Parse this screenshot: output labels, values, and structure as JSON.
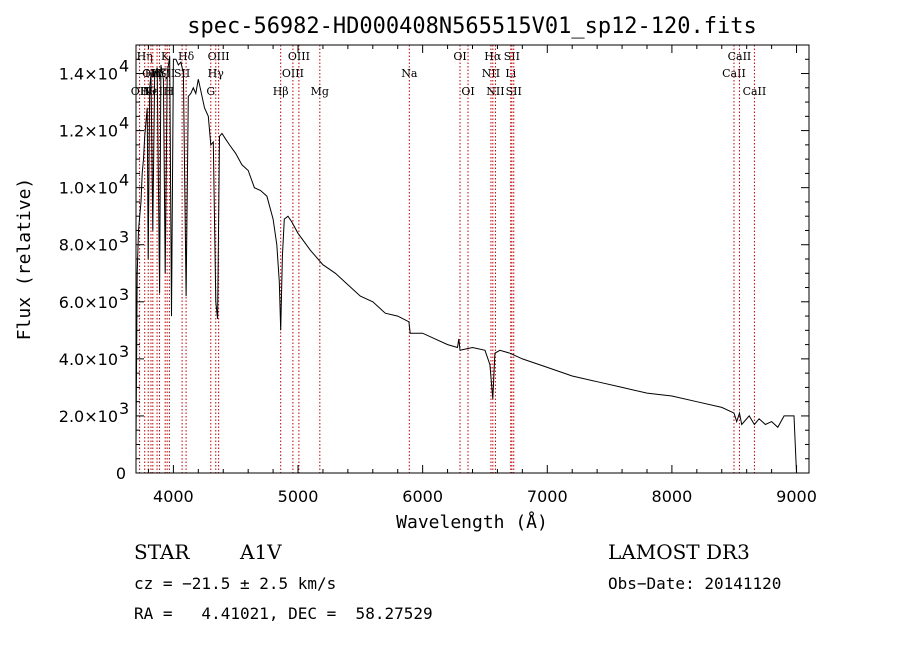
{
  "chart_data": {
    "type": "line",
    "title": "spec-56982-HD000408N565515V01_sp12-120.fits",
    "xlabel": "Wavelength (Å)",
    "ylabel": "Flux (relative)",
    "xlim": [
      3700,
      9100
    ],
    "ylim": [
      0,
      15000
    ],
    "x_ticks": [
      {
        "value": 4000,
        "label": "4000"
      },
      {
        "value": 5000,
        "label": "5000"
      },
      {
        "value": 6000,
        "label": "6000"
      },
      {
        "value": 7000,
        "label": "7000"
      },
      {
        "value": 8000,
        "label": "8000"
      },
      {
        "value": 9000,
        "label": "9000"
      }
    ],
    "y_ticks": [
      {
        "value": 0,
        "mant": "0",
        "exp": ""
      },
      {
        "value": 2000,
        "mant": "2.0×10",
        "exp": "3"
      },
      {
        "value": 4000,
        "mant": "4.0×10",
        "exp": "3"
      },
      {
        "value": 6000,
        "mant": "6.0×10",
        "exp": "3"
      },
      {
        "value": 8000,
        "mant": "8.0×10",
        "exp": "3"
      },
      {
        "value": 10000,
        "mant": "1.0×10",
        "exp": "4"
      },
      {
        "value": 12000,
        "mant": "1.2×10",
        "exp": "4"
      },
      {
        "value": 14000,
        "mant": "1.4×10",
        "exp": "4"
      }
    ],
    "series": [
      {
        "name": "flux",
        "x": [
          3700,
          3710,
          3720,
          3730,
          3740,
          3750,
          3760,
          3770,
          3780,
          3790,
          3798,
          3810,
          3820,
          3835,
          3850,
          3870,
          3889,
          3900,
          3920,
          3934,
          3950,
          3970,
          3985,
          4000,
          4020,
          4040,
          4060,
          4080,
          4102,
          4120,
          4140,
          4160,
          4180,
          4200,
          4220,
          4250,
          4280,
          4300,
          4320,
          4340,
          4355,
          4370,
          4390,
          4420,
          4450,
          4500,
          4550,
          4600,
          4650,
          4700,
          4750,
          4800,
          4830,
          4850,
          4861,
          4875,
          4890,
          4920,
          4950,
          5000,
          5100,
          5200,
          5300,
          5400,
          5500,
          5600,
          5700,
          5800,
          5890,
          5900,
          6000,
          6100,
          6200,
          6280,
          6290,
          6300,
          6400,
          6500,
          6540,
          6563,
          6580,
          6620,
          6700,
          6800,
          7000,
          7200,
          7400,
          7600,
          7800,
          8000,
          8200,
          8400,
          8498,
          8520,
          8542,
          8560,
          8620,
          8662,
          8700,
          8750,
          8800,
          8850,
          8900,
          8980,
          9000
        ],
        "y": [
          1000,
          7000,
          8500,
          9000,
          9500,
          10500,
          11000,
          11800,
          12300,
          12800,
          7500,
          13500,
          14000,
          8500,
          14000,
          14200,
          6300,
          14300,
          13800,
          7000,
          14000,
          14600,
          5500,
          14500,
          14500,
          14300,
          14400,
          14000,
          6200,
          13200,
          13300,
          13500,
          13300,
          13800,
          13400,
          12800,
          12500,
          11500,
          11600,
          6000,
          5400,
          11800,
          11900,
          11700,
          11500,
          11200,
          10800,
          10600,
          10000,
          9900,
          9700,
          8900,
          8000,
          6700,
          5000,
          7600,
          8900,
          9000,
          8800,
          8400,
          7800,
          7300,
          7000,
          6600,
          6200,
          6000,
          5600,
          5500,
          5300,
          4900,
          4900,
          4700,
          4500,
          4400,
          4700,
          4300,
          4400,
          4300,
          3800,
          2600,
          4200,
          4300,
          4200,
          4000,
          3700,
          3400,
          3200,
          3000,
          2800,
          2700,
          2500,
          2300,
          2100,
          1800,
          2100,
          1700,
          2000,
          1700,
          1900,
          1700,
          1800,
          1600,
          2000,
          2000,
          0
        ]
      }
    ],
    "spectral_lines": [
      {
        "x": 3729,
        "label": "OII",
        "row": 2
      },
      {
        "x": 3770,
        "label": "Hη",
        "row": 0
      },
      {
        "x": 3798,
        "label": "Hθ",
        "row": 2
      },
      {
        "x": 3820,
        "label": "OII",
        "row": 1
      },
      {
        "x": 3835,
        "label": "Hη",
        "row": 1
      },
      {
        "x": 3869,
        "label": "NeIII",
        "row": 2
      },
      {
        "x": 3889,
        "label": "Hζ",
        "row": 1
      },
      {
        "x": 3934,
        "label": "K",
        "row": 0
      },
      {
        "x": 3950,
        "label": "SII",
        "row": 1
      },
      {
        "x": 3968,
        "label": "H",
        "row": 2
      },
      {
        "x": 4102,
        "label": "Hδ",
        "row": 0
      },
      {
        "x": 4070,
        "label": "SII",
        "row": 1
      },
      {
        "x": 4300,
        "label": "G",
        "row": 2
      },
      {
        "x": 4340,
        "label": "Hγ",
        "row": 1
      },
      {
        "x": 4363,
        "label": "OIII",
        "row": 0
      },
      {
        "x": 4861,
        "label": "Hβ",
        "row": 2
      },
      {
        "x": 4959,
        "label": "OIII",
        "row": 1
      },
      {
        "x": 5007,
        "label": "OIII",
        "row": 0
      },
      {
        "x": 5175,
        "label": "Mg",
        "row": 2
      },
      {
        "x": 5893,
        "label": "Na",
        "row": 1
      },
      {
        "x": 6300,
        "label": "OI",
        "row": 0
      },
      {
        "x": 6364,
        "label": "OI",
        "row": 2
      },
      {
        "x": 6548,
        "label": "NII",
        "row": 1
      },
      {
        "x": 6563,
        "label": "Hα",
        "row": 0
      },
      {
        "x": 6584,
        "label": "NII",
        "row": 2
      },
      {
        "x": 6707,
        "label": "Li",
        "row": 1
      },
      {
        "x": 6716,
        "label": "SII",
        "row": 0
      },
      {
        "x": 6731,
        "label": "SII",
        "row": 2
      },
      {
        "x": 8498,
        "label": "CaII",
        "row": 1
      },
      {
        "x": 8542,
        "label": "CaII",
        "row": 0
      },
      {
        "x": 8662,
        "label": "CaII",
        "row": 2
      }
    ]
  },
  "info": {
    "star_label": "STAR",
    "star_class": "A1V",
    "survey": "LAMOST DR3",
    "cz": "cz = −21.5 ± 2.5 km/s",
    "obs_date": "Obs−Date: 20141120",
    "radec": "RA =   4.41021, DEC =  58.27529"
  }
}
